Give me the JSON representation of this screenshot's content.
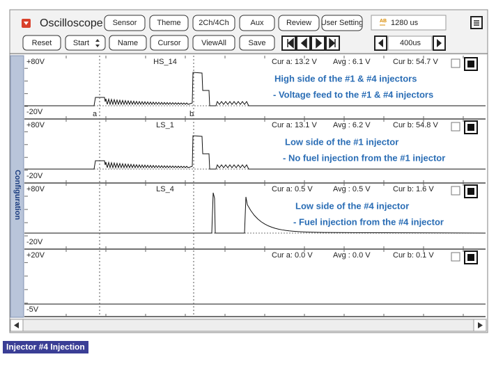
{
  "app": {
    "title": "Oscilloscope",
    "menu_buttons": [
      "Sensor",
      "Theme",
      "2Ch/4Ch",
      "Aux",
      "Review",
      "User Setting"
    ],
    "time_icon": "AB",
    "time_display": "1280 us"
  },
  "toolbar": {
    "buttons": [
      "Reset",
      "Start",
      "Name",
      "Cursor",
      "ViewAll",
      "Save"
    ],
    "timebase": "400us"
  },
  "side_panel": "Configuration",
  "cursors": {
    "a": "a",
    "b": "b"
  },
  "channels": [
    {
      "top": "+80V",
      "bottom": "-20V",
      "name": "HS_14",
      "cur_a": "Cur a: 13.2 V",
      "avg": "Avg : 6.1 V",
      "cur_b": "Cur b: 54.7 V",
      "notes": [
        "High side  of the #1 & #4 injectors",
        "- Voltage feed to  the #1 & #4 injectors"
      ]
    },
    {
      "top": "+80V",
      "bottom": "-20V",
      "name": "LS_1",
      "cur_a": "Cur a: 13.1 V",
      "avg": "Avg : 6.2 V",
      "cur_b": "Cur b: 54.8 V",
      "notes": [
        "Low side of the #1 injector",
        "- No fuel injection from   the #1 injector"
      ]
    },
    {
      "top": "+80V",
      "bottom": "-20V",
      "name": "LS_4",
      "cur_a": "Cur a: 0.5 V",
      "avg": "Avg : 0.5 V",
      "cur_b": "Cur b: 1.6 V",
      "notes": [
        "Low side of the #4 injector",
        "- Fuel injection from the #4 injector"
      ]
    },
    {
      "top": "+20V",
      "bottom": "-5V",
      "cur_a": "Cur a: 0.0 V",
      "avg": "Avg : 0.0 V",
      "cur_b": "Cur b: 0.1 V"
    }
  ],
  "caption": "Injector #4 Injection"
}
